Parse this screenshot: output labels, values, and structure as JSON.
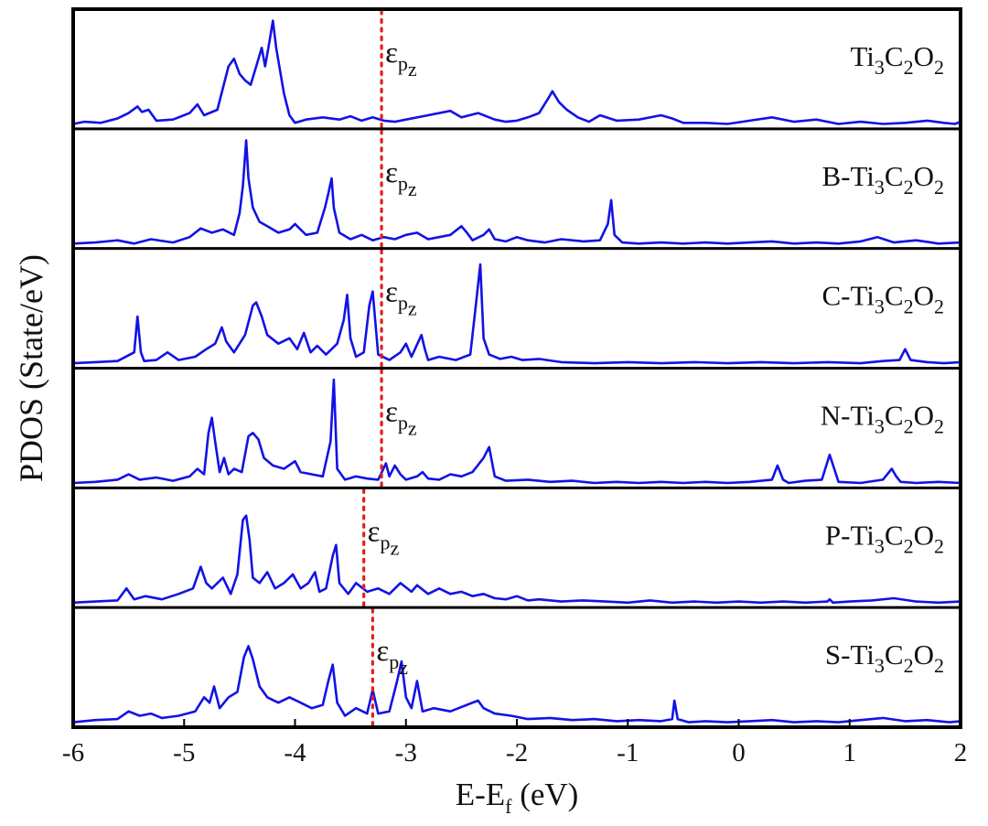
{
  "chart_data": {
    "type": "line",
    "layout": "stacked-panels",
    "xlabel": "E-E",
    "xlabel_sub": "f",
    "xlabel_unit": " (eV)",
    "ylabel": "PDOS (State/eV)",
    "xlim": [
      -6,
      2
    ],
    "xticks": [
      -6,
      -5,
      -4,
      -3,
      -2,
      -1,
      0,
      1,
      2
    ],
    "xtick_labels": [
      "-6",
      "-5",
      "-4",
      "-3",
      "-2",
      "-1",
      "0",
      "1",
      "2"
    ],
    "yticks_shown": false,
    "ylim": [
      0,
      1
    ],
    "marker_symbol": "ε",
    "marker_sub1": "p",
    "marker_sub2": "z",
    "panels": [
      {
        "name": "Ti3C2O2",
        "label_parts": [
          [
            "",
            "Ti"
          ],
          [
            "sub",
            "3"
          ],
          [
            "",
            "C"
          ],
          [
            "sub",
            "2"
          ],
          [
            "",
            "O"
          ],
          [
            "sub",
            "2"
          ]
        ],
        "eps_pz": -3.22,
        "x": [
          -6.0,
          -5.9,
          -5.75,
          -5.6,
          -5.5,
          -5.42,
          -5.38,
          -5.32,
          -5.25,
          -5.1,
          -4.95,
          -4.88,
          -4.82,
          -4.7,
          -4.6,
          -4.55,
          -4.5,
          -4.45,
          -4.4,
          -4.35,
          -4.3,
          -4.27,
          -4.23,
          -4.2,
          -4.17,
          -4.1,
          -4.05,
          -4.0,
          -3.9,
          -3.75,
          -3.6,
          -3.5,
          -3.4,
          -3.3,
          -3.2,
          -3.1,
          -3.0,
          -2.8,
          -2.6,
          -2.5,
          -2.35,
          -2.2,
          -2.1,
          -2.0,
          -1.9,
          -1.8,
          -1.72,
          -1.68,
          -1.62,
          -1.55,
          -1.45,
          -1.35,
          -1.25,
          -1.1,
          -0.9,
          -0.7,
          -0.6,
          -0.5,
          -0.3,
          -0.1,
          0.1,
          0.3,
          0.5,
          0.7,
          0.9,
          1.1,
          1.3,
          1.5,
          1.7,
          1.85,
          1.95,
          2.0
        ],
        "y": [
          0.02,
          0.04,
          0.03,
          0.07,
          0.12,
          0.18,
          0.13,
          0.15,
          0.05,
          0.06,
          0.12,
          0.2,
          0.1,
          0.15,
          0.55,
          0.62,
          0.48,
          0.42,
          0.38,
          0.55,
          0.72,
          0.55,
          0.78,
          0.97,
          0.72,
          0.3,
          0.1,
          0.03,
          0.06,
          0.08,
          0.06,
          0.09,
          0.05,
          0.08,
          0.05,
          0.04,
          0.06,
          0.1,
          0.14,
          0.08,
          0.12,
          0.06,
          0.04,
          0.05,
          0.08,
          0.12,
          0.25,
          0.32,
          0.22,
          0.15,
          0.08,
          0.04,
          0.1,
          0.05,
          0.06,
          0.1,
          0.07,
          0.03,
          0.03,
          0.02,
          0.05,
          0.08,
          0.04,
          0.06,
          0.02,
          0.04,
          0.02,
          0.03,
          0.05,
          0.03,
          0.02,
          0.04
        ]
      },
      {
        "name": "B-Ti3C2O2",
        "label_parts": [
          [
            "",
            "B-Ti"
          ],
          [
            "sub",
            "3"
          ],
          [
            "",
            "C"
          ],
          [
            "sub",
            "2"
          ],
          [
            "",
            "O"
          ],
          [
            "sub",
            "2"
          ]
        ],
        "eps_pz": -3.22,
        "x": [
          -6.0,
          -5.8,
          -5.6,
          -5.45,
          -5.3,
          -5.1,
          -4.95,
          -4.85,
          -4.75,
          -4.65,
          -4.55,
          -4.5,
          -4.47,
          -4.44,
          -4.42,
          -4.38,
          -4.32,
          -4.25,
          -4.15,
          -4.05,
          -4.0,
          -3.9,
          -3.8,
          -3.73,
          -3.7,
          -3.67,
          -3.65,
          -3.6,
          -3.5,
          -3.4,
          -3.3,
          -3.2,
          -3.1,
          -3.0,
          -2.9,
          -2.8,
          -2.7,
          -2.6,
          -2.5,
          -2.45,
          -2.4,
          -2.3,
          -2.25,
          -2.2,
          -2.1,
          -2.0,
          -1.9,
          -1.75,
          -1.6,
          -1.4,
          -1.25,
          -1.18,
          -1.15,
          -1.12,
          -1.05,
          -0.9,
          -0.7,
          -0.5,
          -0.3,
          -0.1,
          0.1,
          0.3,
          0.5,
          0.7,
          0.9,
          1.1,
          1.25,
          1.4,
          1.6,
          1.8,
          2.0
        ],
        "y": [
          0.02,
          0.03,
          0.05,
          0.02,
          0.06,
          0.03,
          0.08,
          0.16,
          0.12,
          0.15,
          0.1,
          0.3,
          0.55,
          0.97,
          0.62,
          0.35,
          0.22,
          0.18,
          0.12,
          0.15,
          0.2,
          0.1,
          0.12,
          0.35,
          0.48,
          0.62,
          0.35,
          0.12,
          0.06,
          0.1,
          0.05,
          0.08,
          0.06,
          0.1,
          0.12,
          0.06,
          0.08,
          0.1,
          0.18,
          0.12,
          0.05,
          0.1,
          0.15,
          0.06,
          0.04,
          0.08,
          0.05,
          0.03,
          0.06,
          0.04,
          0.05,
          0.2,
          0.42,
          0.1,
          0.03,
          0.02,
          0.03,
          0.02,
          0.03,
          0.02,
          0.03,
          0.04,
          0.02,
          0.03,
          0.02,
          0.04,
          0.08,
          0.03,
          0.05,
          0.02,
          0.03
        ]
      },
      {
        "name": "C-Ti3C2O2",
        "label_parts": [
          [
            "",
            "C-Ti"
          ],
          [
            "sub",
            "3"
          ],
          [
            "",
            "C"
          ],
          [
            "sub",
            "2"
          ],
          [
            "",
            "O"
          ],
          [
            "sub",
            "2"
          ]
        ],
        "eps_pz": -3.22,
        "x": [
          -6.0,
          -5.8,
          -5.6,
          -5.45,
          -5.42,
          -5.39,
          -5.36,
          -5.25,
          -5.15,
          -5.05,
          -4.9,
          -4.8,
          -4.72,
          -4.66,
          -4.62,
          -4.55,
          -4.45,
          -4.38,
          -4.35,
          -4.3,
          -4.25,
          -4.15,
          -4.05,
          -3.98,
          -3.92,
          -3.86,
          -3.8,
          -3.72,
          -3.62,
          -3.56,
          -3.53,
          -3.5,
          -3.45,
          -3.38,
          -3.33,
          -3.3,
          -3.25,
          -3.15,
          -3.05,
          -3.0,
          -2.95,
          -2.86,
          -2.83,
          -2.8,
          -2.7,
          -2.55,
          -2.42,
          -2.37,
          -2.33,
          -2.3,
          -2.25,
          -2.15,
          -2.05,
          -1.95,
          -1.8,
          -1.6,
          -1.3,
          -1.0,
          -0.7,
          -0.4,
          -0.1,
          0.2,
          0.5,
          0.8,
          1.1,
          1.3,
          1.45,
          1.5,
          1.55,
          1.7,
          1.85,
          2.0
        ],
        "y": [
          0.02,
          0.03,
          0.04,
          0.12,
          0.45,
          0.12,
          0.04,
          0.05,
          0.12,
          0.05,
          0.08,
          0.15,
          0.2,
          0.35,
          0.22,
          0.12,
          0.28,
          0.55,
          0.58,
          0.45,
          0.28,
          0.2,
          0.25,
          0.15,
          0.3,
          0.12,
          0.18,
          0.1,
          0.2,
          0.42,
          0.65,
          0.25,
          0.08,
          0.12,
          0.55,
          0.68,
          0.1,
          0.05,
          0.12,
          0.2,
          0.08,
          0.28,
          0.15,
          0.05,
          0.08,
          0.05,
          0.1,
          0.55,
          0.93,
          0.25,
          0.1,
          0.06,
          0.08,
          0.05,
          0.06,
          0.03,
          0.02,
          0.03,
          0.02,
          0.03,
          0.02,
          0.03,
          0.02,
          0.03,
          0.02,
          0.04,
          0.05,
          0.15,
          0.05,
          0.03,
          0.02,
          0.03
        ]
      },
      {
        "name": "N-Ti3C2O2",
        "label_parts": [
          [
            "",
            "N-Ti"
          ],
          [
            "sub",
            "3"
          ],
          [
            "",
            "C"
          ],
          [
            "sub",
            "2"
          ],
          [
            "",
            "O"
          ],
          [
            "sub",
            "2"
          ]
        ],
        "eps_pz": -3.22,
        "x": [
          -6.0,
          -5.8,
          -5.6,
          -5.5,
          -5.4,
          -5.25,
          -5.1,
          -4.95,
          -4.88,
          -4.82,
          -4.78,
          -4.75,
          -4.72,
          -4.68,
          -4.64,
          -4.6,
          -4.55,
          -4.48,
          -4.42,
          -4.38,
          -4.33,
          -4.28,
          -4.2,
          -4.1,
          -4.0,
          -3.95,
          -3.85,
          -3.75,
          -3.68,
          -3.65,
          -3.62,
          -3.55,
          -3.45,
          -3.35,
          -3.25,
          -3.18,
          -3.15,
          -3.1,
          -3.05,
          -3.0,
          -2.9,
          -2.85,
          -2.8,
          -2.7,
          -2.6,
          -2.5,
          -2.4,
          -2.3,
          -2.25,
          -2.2,
          -2.1,
          -1.9,
          -1.7,
          -1.5,
          -1.3,
          -1.1,
          -0.9,
          -0.7,
          -0.5,
          -0.3,
          -0.1,
          0.1,
          0.3,
          0.35,
          0.4,
          0.45,
          0.6,
          0.75,
          0.82,
          0.9,
          1.1,
          1.3,
          1.38,
          1.42,
          1.46,
          1.6,
          1.8,
          2.0
        ],
        "y": [
          0.02,
          0.03,
          0.05,
          0.1,
          0.05,
          0.07,
          0.04,
          0.08,
          0.15,
          0.1,
          0.48,
          0.62,
          0.4,
          0.12,
          0.25,
          0.1,
          0.15,
          0.12,
          0.45,
          0.48,
          0.42,
          0.25,
          0.18,
          0.15,
          0.22,
          0.12,
          0.1,
          0.08,
          0.4,
          0.97,
          0.15,
          0.05,
          0.08,
          0.06,
          0.05,
          0.2,
          0.08,
          0.18,
          0.1,
          0.05,
          0.08,
          0.12,
          0.06,
          0.05,
          0.1,
          0.08,
          0.12,
          0.25,
          0.35,
          0.08,
          0.04,
          0.05,
          0.03,
          0.04,
          0.02,
          0.03,
          0.02,
          0.03,
          0.02,
          0.03,
          0.02,
          0.03,
          0.05,
          0.18,
          0.05,
          0.02,
          0.04,
          0.05,
          0.28,
          0.03,
          0.02,
          0.05,
          0.15,
          0.08,
          0.03,
          0.02,
          0.03,
          0.02
        ]
      },
      {
        "name": "P-Ti3C2O2",
        "label_parts": [
          [
            "",
            "P-Ti"
          ],
          [
            "sub",
            "3"
          ],
          [
            "",
            "C"
          ],
          [
            "sub",
            "2"
          ],
          [
            "",
            "O"
          ],
          [
            "sub",
            "2"
          ]
        ],
        "eps_pz": -3.38,
        "x": [
          -6.0,
          -5.8,
          -5.6,
          -5.52,
          -5.45,
          -5.35,
          -5.2,
          -5.05,
          -4.92,
          -4.85,
          -4.8,
          -4.75,
          -4.65,
          -4.58,
          -4.52,
          -4.47,
          -4.44,
          -4.41,
          -4.38,
          -4.32,
          -4.25,
          -4.18,
          -4.1,
          -4.02,
          -3.95,
          -3.88,
          -3.82,
          -3.78,
          -3.72,
          -3.66,
          -3.63,
          -3.6,
          -3.52,
          -3.45,
          -3.35,
          -3.25,
          -3.15,
          -3.05,
          -2.95,
          -2.9,
          -2.8,
          -2.7,
          -2.6,
          -2.5,
          -2.4,
          -2.3,
          -2.2,
          -2.1,
          -2.0,
          -1.9,
          -1.8,
          -1.6,
          -1.4,
          -1.2,
          -1.0,
          -0.8,
          -0.6,
          -0.4,
          -0.2,
          0.0,
          0.2,
          0.4,
          0.6,
          0.8,
          0.82,
          0.85,
          1.0,
          1.2,
          1.4,
          1.6,
          1.8,
          2.0
        ],
        "y": [
          0.02,
          0.03,
          0.04,
          0.15,
          0.05,
          0.08,
          0.05,
          0.1,
          0.15,
          0.35,
          0.2,
          0.15,
          0.25,
          0.1,
          0.28,
          0.78,
          0.82,
          0.6,
          0.25,
          0.2,
          0.3,
          0.15,
          0.2,
          0.28,
          0.15,
          0.2,
          0.3,
          0.12,
          0.15,
          0.45,
          0.55,
          0.2,
          0.1,
          0.2,
          0.12,
          0.15,
          0.1,
          0.2,
          0.12,
          0.18,
          0.1,
          0.15,
          0.1,
          0.12,
          0.08,
          0.1,
          0.06,
          0.05,
          0.08,
          0.04,
          0.05,
          0.03,
          0.04,
          0.03,
          0.02,
          0.04,
          0.02,
          0.03,
          0.02,
          0.03,
          0.02,
          0.03,
          0.02,
          0.03,
          0.05,
          0.02,
          0.03,
          0.04,
          0.06,
          0.03,
          0.02,
          0.03
        ]
      },
      {
        "name": "S-Ti3C2O2",
        "label_parts": [
          [
            "",
            "S-Ti"
          ],
          [
            "sub",
            "3"
          ],
          [
            "",
            "C"
          ],
          [
            "sub",
            "2"
          ],
          [
            "",
            "O"
          ],
          [
            "sub",
            "2"
          ]
        ],
        "eps_pz": -3.3,
        "x": [
          -6.0,
          -5.8,
          -5.6,
          -5.5,
          -5.4,
          -5.3,
          -5.2,
          -5.05,
          -4.9,
          -4.82,
          -4.77,
          -4.73,
          -4.68,
          -4.6,
          -4.52,
          -4.46,
          -4.42,
          -4.38,
          -4.32,
          -4.25,
          -4.15,
          -4.05,
          -3.95,
          -3.85,
          -3.75,
          -3.7,
          -3.66,
          -3.62,
          -3.55,
          -3.45,
          -3.35,
          -3.3,
          -3.25,
          -3.15,
          -3.08,
          -3.04,
          -3.0,
          -2.95,
          -2.9,
          -2.85,
          -2.75,
          -2.6,
          -2.45,
          -2.35,
          -2.3,
          -2.2,
          -2.05,
          -1.9,
          -1.7,
          -1.5,
          -1.3,
          -1.1,
          -0.9,
          -0.7,
          -0.6,
          -0.58,
          -0.55,
          -0.45,
          -0.3,
          -0.1,
          0.1,
          0.3,
          0.5,
          0.7,
          0.9,
          1.1,
          1.3,
          1.5,
          1.7,
          1.9,
          2.0
        ],
        "y": [
          0.02,
          0.04,
          0.05,
          0.12,
          0.08,
          0.1,
          0.06,
          0.08,
          0.12,
          0.25,
          0.2,
          0.35,
          0.15,
          0.25,
          0.3,
          0.62,
          0.72,
          0.6,
          0.35,
          0.25,
          0.2,
          0.25,
          0.2,
          0.15,
          0.18,
          0.4,
          0.55,
          0.2,
          0.08,
          0.15,
          0.1,
          0.32,
          0.1,
          0.12,
          0.4,
          0.58,
          0.25,
          0.15,
          0.4,
          0.12,
          0.15,
          0.12,
          0.18,
          0.22,
          0.15,
          0.1,
          0.08,
          0.05,
          0.06,
          0.04,
          0.05,
          0.03,
          0.04,
          0.03,
          0.05,
          0.22,
          0.05,
          0.02,
          0.03,
          0.02,
          0.03,
          0.04,
          0.02,
          0.03,
          0.02,
          0.04,
          0.06,
          0.03,
          0.04,
          0.02,
          0.03
        ]
      }
    ]
  },
  "colors": {
    "series": "#1212e6",
    "eps_marker": "#e02020",
    "axes": "#000000",
    "text": "#111111"
  }
}
